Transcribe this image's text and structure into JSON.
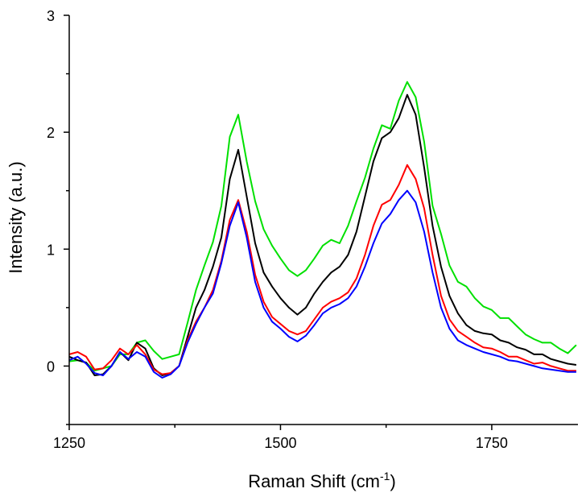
{
  "chart_data": {
    "type": "line",
    "title": "",
    "xlabel": "Raman Shift (cm",
    "xlabel_sup": "-1",
    "xlabel_end": ")",
    "ylabel": "Intensity (a.u.)",
    "xlim": [
      1250,
      1852
    ],
    "ylim": [
      -0.5,
      3
    ],
    "xticks": [
      1250,
      1500,
      1750
    ],
    "xminor": [
      1375,
      1625
    ],
    "yticks": [
      0,
      1,
      2,
      3
    ],
    "grid": false,
    "legend": "none",
    "x": [
      1250,
      1260,
      1270,
      1280,
      1290,
      1300,
      1310,
      1320,
      1330,
      1340,
      1350,
      1360,
      1370,
      1380,
      1390,
      1400,
      1410,
      1420,
      1430,
      1440,
      1450,
      1460,
      1470,
      1480,
      1490,
      1500,
      1510,
      1520,
      1530,
      1540,
      1550,
      1560,
      1570,
      1580,
      1590,
      1600,
      1610,
      1620,
      1630,
      1640,
      1650,
      1660,
      1670,
      1680,
      1690,
      1700,
      1710,
      1720,
      1730,
      1740,
      1750,
      1760,
      1770,
      1780,
      1790,
      1800,
      1810,
      1820,
      1830,
      1840,
      1850
    ],
    "series": [
      {
        "name": "green",
        "color": "#00e000",
        "values": [
          0.04,
          0.05,
          0.03,
          -0.04,
          -0.02,
          0,
          0.1,
          0.1,
          0.2,
          0.22,
          0.13,
          0.06,
          0.08,
          0.1,
          0.37,
          0.65,
          0.86,
          1.06,
          1.37,
          1.96,
          2.15,
          1.75,
          1.41,
          1.17,
          1.03,
          0.92,
          0.82,
          0.77,
          0.82,
          0.92,
          1.03,
          1.08,
          1.05,
          1.2,
          1.41,
          1.61,
          1.86,
          2.06,
          2.03,
          2.27,
          2.43,
          2.3,
          1.92,
          1.37,
          1.13,
          0.86,
          0.72,
          0.68,
          0.58,
          0.51,
          0.48,
          0.41,
          0.41,
          0.34,
          0.27,
          0.23,
          0.2,
          0.2,
          0.15,
          0.11,
          0.18
        ]
      },
      {
        "name": "black",
        "color": "#000000",
        "values": [
          0.08,
          0.05,
          0.03,
          -0.08,
          -0.07,
          0,
          0.12,
          0.05,
          0.2,
          0.15,
          -0.02,
          -0.08,
          -0.06,
          0,
          0.25,
          0.5,
          0.65,
          0.85,
          1.1,
          1.6,
          1.85,
          1.45,
          1.05,
          0.8,
          0.68,
          0.58,
          0.5,
          0.44,
          0.5,
          0.62,
          0.72,
          0.8,
          0.85,
          0.95,
          1.15,
          1.45,
          1.75,
          1.95,
          2.0,
          2.12,
          2.32,
          2.15,
          1.7,
          1.2,
          0.85,
          0.6,
          0.45,
          0.35,
          0.3,
          0.28,
          0.27,
          0.22,
          0.2,
          0.16,
          0.14,
          0.1,
          0.1,
          0.06,
          0.04,
          0.02,
          0.01
        ]
      },
      {
        "name": "red",
        "color": "#ff0000",
        "values": [
          0.1,
          0.12,
          0.08,
          -0.03,
          -0.02,
          0.05,
          0.15,
          0.1,
          0.18,
          0.1,
          -0.03,
          -0.07,
          -0.06,
          0,
          0.22,
          0.38,
          0.5,
          0.65,
          0.9,
          1.25,
          1.42,
          1.15,
          0.78,
          0.55,
          0.42,
          0.36,
          0.3,
          0.27,
          0.3,
          0.4,
          0.5,
          0.55,
          0.58,
          0.63,
          0.75,
          0.95,
          1.2,
          1.38,
          1.42,
          1.55,
          1.72,
          1.6,
          1.35,
          0.95,
          0.6,
          0.4,
          0.3,
          0.25,
          0.2,
          0.16,
          0.15,
          0.12,
          0.08,
          0.08,
          0.05,
          0.02,
          0.03,
          0,
          -0.02,
          -0.04,
          -0.04
        ]
      },
      {
        "name": "blue",
        "color": "#0000ff",
        "values": [
          0.05,
          0.08,
          0.02,
          -0.06,
          -0.08,
          0,
          0.12,
          0.06,
          0.12,
          0.08,
          -0.05,
          -0.1,
          -0.07,
          0,
          0.2,
          0.36,
          0.5,
          0.62,
          0.88,
          1.2,
          1.4,
          1.1,
          0.72,
          0.5,
          0.38,
          0.32,
          0.25,
          0.21,
          0.26,
          0.35,
          0.45,
          0.5,
          0.53,
          0.58,
          0.68,
          0.85,
          1.05,
          1.22,
          1.3,
          1.42,
          1.5,
          1.4,
          1.15,
          0.8,
          0.5,
          0.32,
          0.22,
          0.18,
          0.15,
          0.12,
          0.1,
          0.08,
          0.05,
          0.04,
          0.02,
          0,
          -0.02,
          -0.03,
          -0.04,
          -0.05,
          -0.05
        ]
      }
    ]
  }
}
